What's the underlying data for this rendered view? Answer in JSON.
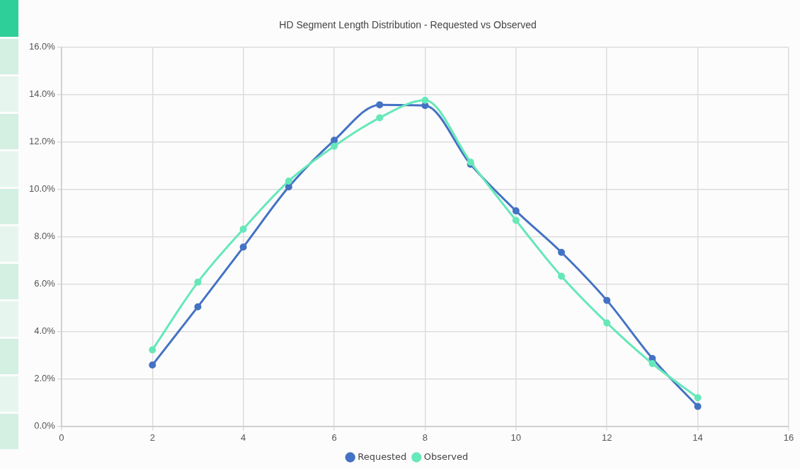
{
  "chart_data": {
    "type": "line",
    "title": "HD Segment Length Distribution - Requested vs Observed",
    "x": [
      2,
      3,
      4,
      5,
      6,
      7,
      8,
      9,
      10,
      11,
      12,
      13,
      14
    ],
    "series": [
      {
        "name": "Requested",
        "color": "#4472c4",
        "values": [
          2.58,
          5.04,
          7.56,
          10.1,
          12.07,
          13.57,
          13.54,
          11.06,
          9.09,
          7.34,
          5.31,
          2.86,
          0.83
        ]
      },
      {
        "name": "Observed",
        "color": "#66e8b8",
        "values": [
          3.22,
          6.08,
          8.32,
          10.35,
          11.82,
          13.02,
          13.76,
          11.15,
          8.69,
          6.33,
          4.36,
          2.64,
          1.2
        ]
      }
    ],
    "xlim": [
      0,
      16
    ],
    "xticks": [
      0,
      2,
      4,
      6,
      8,
      10,
      12,
      14,
      16
    ],
    "ylim": [
      0,
      16
    ],
    "yticks": [
      {
        "value": 0,
        "label": "0.0%"
      },
      {
        "value": 2,
        "label": "2.0%"
      },
      {
        "value": 4,
        "label": "4.0%"
      },
      {
        "value": 6,
        "label": "6.0%"
      },
      {
        "value": 8,
        "label": "8.0%"
      },
      {
        "value": 10,
        "label": "10.0%"
      },
      {
        "value": 12,
        "label": "12.0%"
      },
      {
        "value": 14,
        "label": "14.0%"
      },
      {
        "value": 16,
        "label": "16.0%"
      }
    ],
    "grid": true,
    "legend": "bottom",
    "marker": "circle",
    "line_style": "solid"
  }
}
